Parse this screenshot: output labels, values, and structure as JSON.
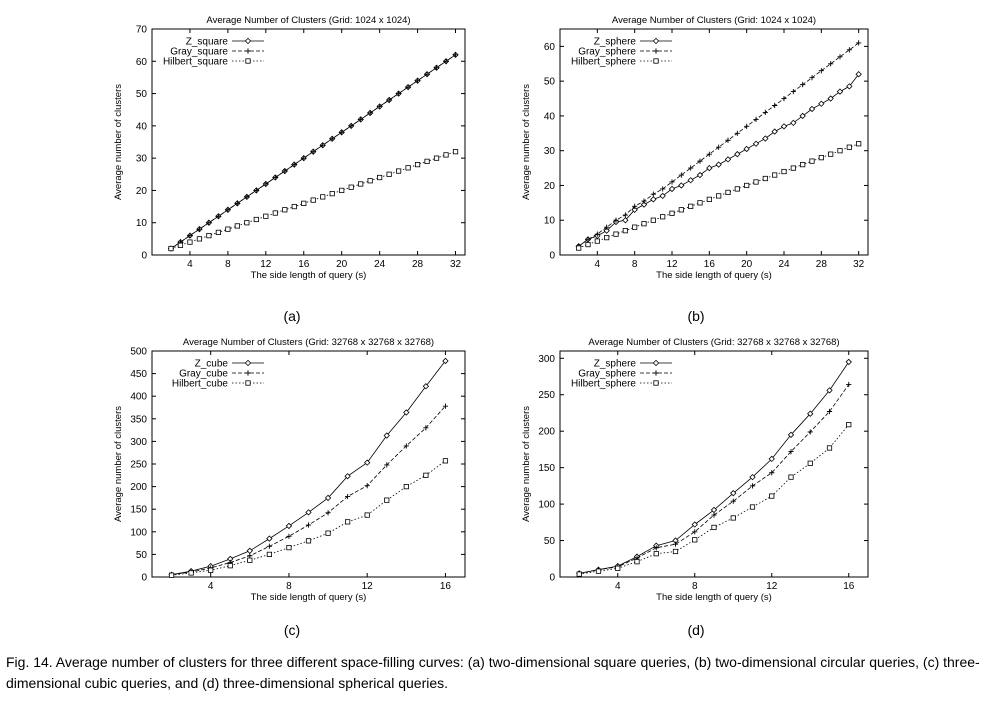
{
  "colors": {
    "line": "#000000",
    "background": "#ffffff"
  },
  "chart_data": [
    {
      "id": "a",
      "type": "line",
      "title": "Average Number of Clusters (Grid: 1024 x 1024)",
      "xlabel": "The side length of query (s)",
      "ylabel": "Average number of clusters",
      "xlim": [
        0,
        33
      ],
      "ylim": [
        0,
        70
      ],
      "xticks": [
        4,
        8,
        12,
        16,
        20,
        24,
        28,
        32
      ],
      "yticks": [
        0,
        10,
        20,
        30,
        40,
        50,
        60,
        70
      ],
      "legend_position": "top-left",
      "x": [
        2,
        3,
        4,
        5,
        6,
        7,
        8,
        9,
        10,
        11,
        12,
        13,
        14,
        15,
        16,
        17,
        18,
        19,
        20,
        21,
        22,
        23,
        24,
        25,
        26,
        27,
        28,
        29,
        30,
        31,
        32
      ],
      "series": [
        {
          "name": "Z_square",
          "marker": "diamond",
          "dash": "solid",
          "values": [
            2,
            4,
            6,
            8,
            10,
            12,
            14,
            16,
            18,
            20,
            22,
            24,
            26,
            28,
            30,
            32,
            34,
            36,
            38,
            40,
            42,
            44,
            46,
            48,
            50,
            52,
            54,
            56,
            58,
            60,
            62
          ]
        },
        {
          "name": "Gray_square",
          "marker": "plus",
          "dash": "dashed",
          "values": [
            2,
            4,
            6,
            8,
            10,
            12,
            14,
            16,
            18,
            20,
            22,
            24,
            26,
            28,
            30,
            32,
            34,
            36,
            38,
            40,
            42,
            44,
            46,
            48,
            50,
            52,
            54,
            56,
            58,
            60,
            62
          ]
        },
        {
          "name": "Hilbert_square",
          "marker": "square",
          "dash": "dotted",
          "values": [
            2,
            3,
            4,
            5,
            6,
            7,
            8,
            9,
            10,
            11,
            12,
            13,
            14,
            15,
            16,
            17,
            18,
            19,
            20,
            21,
            22,
            23,
            24,
            25,
            26,
            27,
            28,
            29,
            30,
            31,
            32
          ]
        }
      ]
    },
    {
      "id": "b",
      "type": "line",
      "title": "Average Number of Clusters (Grid: 1024 x 1024)",
      "xlabel": "The side length of query (s)",
      "ylabel": "Average number of clusters",
      "xlim": [
        0,
        33
      ],
      "ylim": [
        0,
        65
      ],
      "xticks": [
        4,
        8,
        12,
        16,
        20,
        24,
        28,
        32
      ],
      "yticks": [
        0,
        10,
        20,
        30,
        40,
        50,
        60
      ],
      "legend_position": "top-left",
      "x": [
        2,
        3,
        4,
        5,
        6,
        7,
        8,
        9,
        10,
        11,
        12,
        13,
        14,
        15,
        16,
        17,
        18,
        19,
        20,
        21,
        22,
        23,
        24,
        25,
        26,
        27,
        28,
        29,
        30,
        31,
        32
      ],
      "series": [
        {
          "name": "Z_sphere",
          "marker": "diamond",
          "dash": "solid",
          "values": [
            2.5,
            4.5,
            5.5,
            7,
            9.5,
            10,
            13,
            14.5,
            16,
            17,
            19,
            20,
            21.5,
            23,
            25,
            26,
            27.5,
            29,
            30.5,
            32,
            33.5,
            35.5,
            37,
            38,
            40,
            42,
            43.5,
            45,
            47,
            48.5,
            52
          ]
        },
        {
          "name": "Gray_sphere",
          "marker": "plus",
          "dash": "dashed",
          "values": [
            2.5,
            4.5,
            6,
            8,
            10,
            11.5,
            14,
            15.5,
            17.5,
            19,
            21,
            23,
            25,
            27,
            29,
            31,
            33,
            35,
            37,
            39,
            41,
            43,
            45,
            47,
            49,
            51,
            53,
            55,
            57,
            59,
            61
          ]
        },
        {
          "name": "Hilbert_sphere",
          "marker": "square",
          "dash": "dotted",
          "values": [
            2,
            3,
            4,
            5,
            6,
            7,
            8,
            9,
            10,
            11,
            12,
            13,
            14,
            15,
            16,
            17,
            18,
            19,
            20,
            21,
            22,
            23,
            24,
            25,
            26,
            27,
            28,
            29,
            30,
            31,
            32
          ]
        }
      ]
    },
    {
      "id": "c",
      "type": "line",
      "title": "Average Number of Clusters (Grid: 32768 x 32768 x 32768)",
      "xlabel": "The side length of query (s)",
      "ylabel": "Average number of clusters",
      "xlim": [
        1,
        17
      ],
      "ylim": [
        0,
        500
      ],
      "xticks": [
        4,
        8,
        12,
        16
      ],
      "yticks": [
        0,
        50,
        100,
        150,
        200,
        250,
        300,
        350,
        400,
        450,
        500
      ],
      "legend_position": "top-left",
      "x": [
        2,
        3,
        4,
        5,
        6,
        7,
        8,
        9,
        10,
        11,
        12,
        13,
        14,
        15,
        16
      ],
      "series": [
        {
          "name": "Z_cube",
          "marker": "diamond",
          "dash": "solid",
          "values": [
            5,
            13,
            24,
            40,
            58,
            85,
            113,
            143,
            175,
            223,
            253,
            313,
            364,
            422,
            478
          ]
        },
        {
          "name": "Gray_cube",
          "marker": "plus",
          "dash": "dashed",
          "values": [
            5,
            11,
            20,
            32,
            47,
            68,
            90,
            115,
            142,
            178,
            202,
            248,
            290,
            330,
            378
          ]
        },
        {
          "name": "Hilbert_cube",
          "marker": "square",
          "dash": "dotted",
          "values": [
            4,
            9,
            15,
            25,
            37,
            50,
            65,
            80,
            97,
            122,
            137,
            170,
            200,
            225,
            257
          ]
        }
      ]
    },
    {
      "id": "d",
      "type": "line",
      "title": "Average Number of Clusters (Grid: 32768 x 32768 x 32768)",
      "xlabel": "The side length of query (s)",
      "ylabel": "Average number of clusters",
      "xlim": [
        1,
        17
      ],
      "ylim": [
        0,
        310
      ],
      "xticks": [
        4,
        8,
        12,
        16
      ],
      "yticks": [
        0,
        50,
        100,
        150,
        200,
        250,
        300
      ],
      "legend_position": "top-left",
      "x": [
        2,
        3,
        4,
        5,
        6,
        7,
        8,
        9,
        10,
        11,
        12,
        13,
        14,
        15,
        16
      ],
      "series": [
        {
          "name": "Z_sphere",
          "marker": "diamond",
          "dash": "solid",
          "values": [
            5,
            10,
            15,
            28,
            43,
            50,
            72,
            92,
            115,
            137,
            162,
            195,
            224,
            256,
            295
          ]
        },
        {
          "name": "Gray_sphere",
          "marker": "plus",
          "dash": "dashed",
          "values": [
            5,
            10,
            14,
            26,
            40,
            45,
            62,
            85,
            104,
            125,
            143,
            172,
            199,
            227,
            264
          ]
        },
        {
          "name": "Hilbert_sphere",
          "marker": "square",
          "dash": "dotted",
          "values": [
            4,
            8,
            12,
            21,
            32,
            35,
            51,
            68,
            81,
            96,
            111,
            137,
            156,
            177,
            209
          ]
        }
      ]
    }
  ],
  "sublabels": {
    "a": "(a)",
    "b": "(b)",
    "c": "(c)",
    "d": "(d)"
  },
  "caption": "Fig. 14. Average number of clusters for three different space-filling curves: (a) two-dimensional square queries, (b) two-dimensional circular queries, (c) three-dimensional cubic queries, and (d) three-dimensional spherical queries."
}
